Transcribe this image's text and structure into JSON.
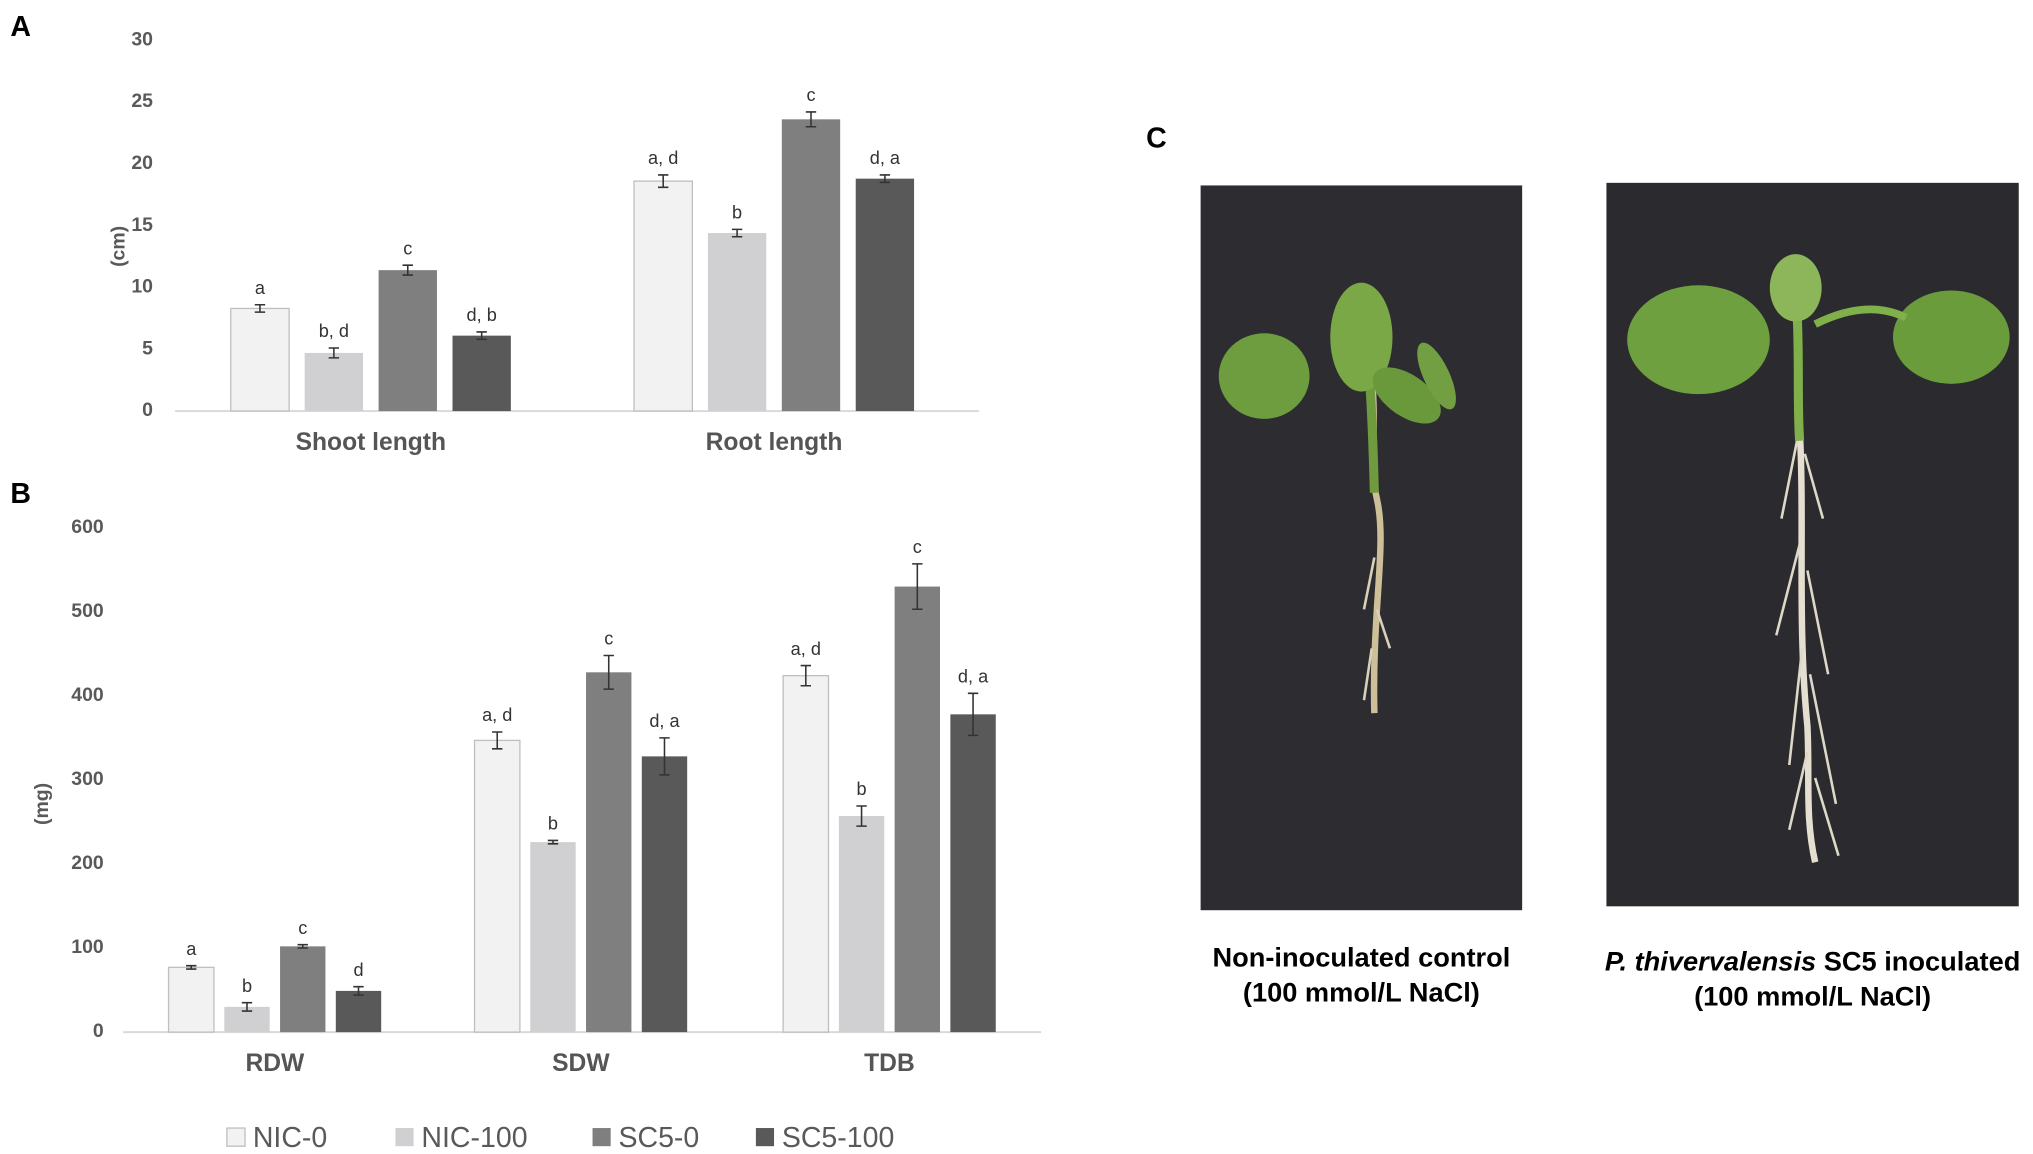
{
  "panel_labels": {
    "a": "A",
    "b": "B",
    "c": "C"
  },
  "chart_data": [
    {
      "type": "bar",
      "y_label": "(cm)",
      "categories": [
        "Shoot length",
        "Root length"
      ],
      "ylim": [
        0,
        30
      ],
      "yticks": [
        0,
        5,
        10,
        15,
        20,
        25,
        30
      ],
      "series": [
        {
          "color": "#f2f2f2",
          "values": [
            8.3,
            18.6
          ],
          "errors": [
            0.3,
            0.5
          ],
          "letters": [
            "a",
            "a, d"
          ]
        },
        {
          "color": "#d0cfd1",
          "values": [
            4.7,
            14.4
          ],
          "errors": [
            0.4,
            0.3
          ],
          "letters": [
            "b, d",
            "b"
          ]
        },
        {
          "color": "#7f7f7f",
          "values": [
            11.4,
            23.6
          ],
          "errors": [
            0.4,
            0.6
          ],
          "letters": [
            "c",
            "c"
          ]
        },
        {
          "color": "#595959",
          "values": [
            6.1,
            18.8
          ],
          "errors": [
            0.3,
            0.3
          ],
          "letters": [
            "d, b",
            "d, a"
          ]
        }
      ]
    },
    {
      "type": "bar",
      "y_label": "(mg)",
      "categories": [
        "RDW",
        "SDW",
        "TDB"
      ],
      "ylim": [
        0,
        600
      ],
      "yticks": [
        0,
        100,
        200,
        300,
        400,
        500,
        600
      ],
      "legend": "bottom",
      "series": [
        {
          "name": "NIC-0",
          "color": "#f2f2f2",
          "values": [
            77,
            347,
            424
          ],
          "errors": [
            2,
            10,
            12
          ],
          "letters": [
            "a",
            "a, d",
            "a, d"
          ]
        },
        {
          "name": "NIC-100",
          "color": "#d0cfd1",
          "values": [
            30,
            226,
            257
          ],
          "errors": [
            5,
            2,
            12
          ],
          "letters": [
            "b",
            "b",
            "b"
          ]
        },
        {
          "name": "SC5-0",
          "color": "#7f7f7f",
          "values": [
            102,
            428,
            530
          ],
          "errors": [
            2,
            20,
            27
          ],
          "letters": [
            "c",
            "c",
            "c"
          ]
        },
        {
          "name": "SC5-100",
          "color": "#595959",
          "values": [
            49,
            328,
            378
          ],
          "errors": [
            5,
            22,
            25
          ],
          "letters": [
            "d",
            "d, a",
            "d, a"
          ]
        }
      ]
    }
  ],
  "photos": [
    {
      "caption": [
        "Non-inoculated control",
        "(100 mmol/L NaCl)"
      ]
    },
    {
      "caption_italic": "P. thivervalensis",
      "caption": [
        " SC5 inoculated",
        "(100 mmol/L NaCl)"
      ]
    }
  ]
}
